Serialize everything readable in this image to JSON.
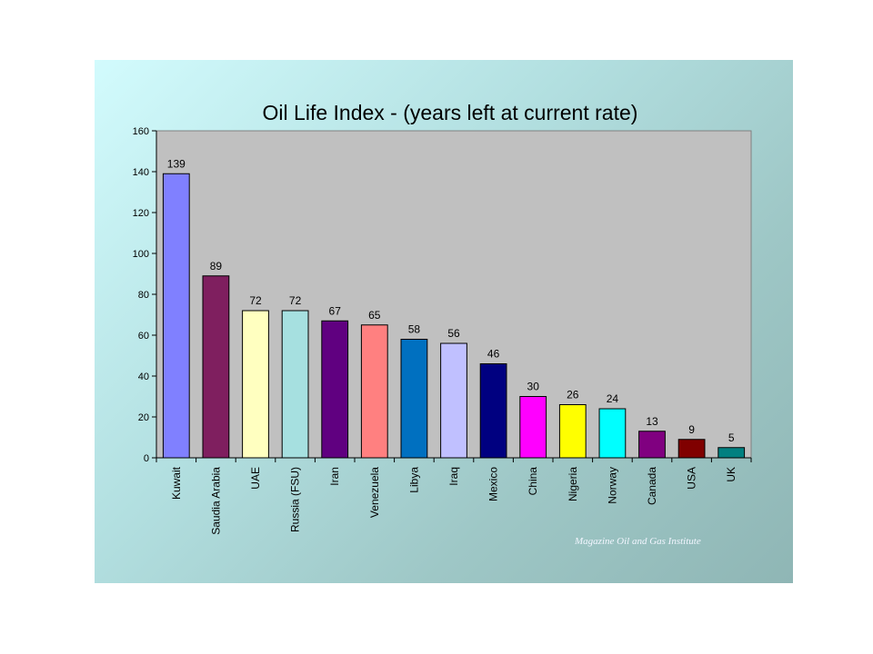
{
  "chart_data": {
    "type": "bar",
    "title": "Oil Life Index - (years left at current rate)",
    "xlabel": "",
    "ylabel": "",
    "ylim": [
      0,
      160
    ],
    "yticks": [
      0,
      20,
      40,
      60,
      80,
      100,
      120,
      140,
      160
    ],
    "grid": false,
    "legend": "none",
    "categories": [
      "Kuwait",
      "Saudia Arabia",
      "UAE",
      "Russia (FSU)",
      "Iran",
      "Venezuela",
      "Libya",
      "Iraq",
      "Mexico",
      "China",
      "Nigeria",
      "Norway",
      "Canada",
      "USA",
      "UK"
    ],
    "values": [
      139,
      89,
      72,
      72,
      67,
      65,
      58,
      56,
      46,
      30,
      26,
      24,
      13,
      9,
      5
    ],
    "bar_colors": [
      "#8080ff",
      "#7f1f5f",
      "#ffffc0",
      "#a6e0e0",
      "#600080",
      "#ff8080",
      "#0070c0",
      "#c0c0ff",
      "#000080",
      "#ff00ff",
      "#ffff00",
      "#00ffff",
      "#800080",
      "#800000",
      "#008080"
    ],
    "plot_background": "#c0c0c0"
  },
  "source": "Magazine Oil and Gas Institute"
}
